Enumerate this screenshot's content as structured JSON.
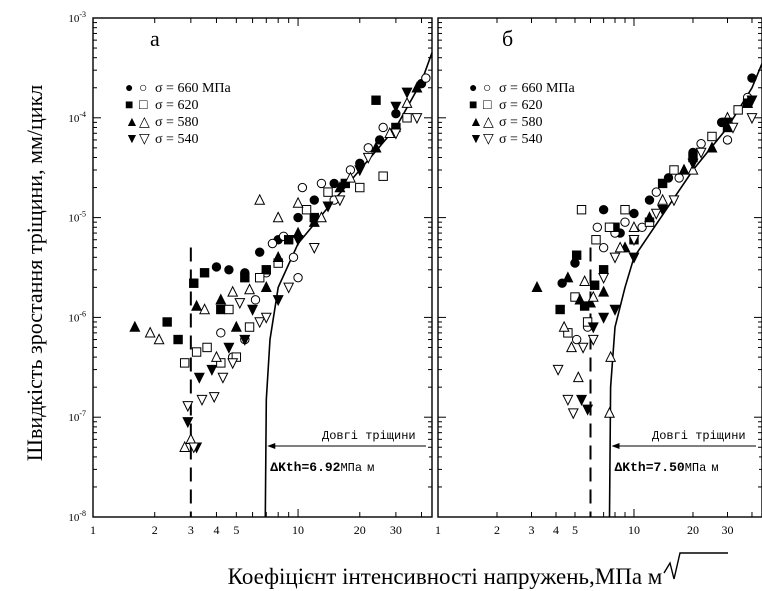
{
  "figure": {
    "ylabel": "Швидкість зростання тріщини, мм/цикл",
    "xlabel_prefix": "Коефіцієнт інтенсивності напружень,МПа",
    "xlabel_unit": "м",
    "y_ticks": [
      {
        "exp": -3,
        "base": "10",
        "sup": "-3"
      },
      {
        "exp": -4,
        "base": "10",
        "sup": "-4"
      },
      {
        "exp": -5,
        "base": "10",
        "sup": "-5"
      },
      {
        "exp": -6,
        "base": "10",
        "sup": "-6"
      },
      {
        "exp": -7,
        "base": "10",
        "sup": "-7"
      },
      {
        "exp": -8,
        "base": "10",
        "sup": "-8"
      }
    ],
    "x_tick_values": [
      1,
      2,
      3,
      4,
      5,
      10,
      20,
      30
    ]
  },
  "chart_data": [
    {
      "type": "scatter",
      "panel_label": "а",
      "x_scale": "log",
      "y_scale": "log",
      "xlim": [
        1,
        45
      ],
      "ylim": [
        1e-08,
        0.001
      ],
      "x_tick_labels": [
        "1",
        "2",
        "3",
        "4",
        "5",
        "10",
        "20",
        "30"
      ],
      "legend": [
        {
          "symbol_filled": "●",
          "symbol_open": "○",
          "label": "σ = 660 МПа"
        },
        {
          "symbol_filled": "■",
          "symbol_open": "□",
          "label": "σ = 620"
        },
        {
          "symbol_filled": "▲",
          "symbol_open": "△",
          "label": "σ = 580"
        },
        {
          "symbol_filled": "▼",
          "symbol_open": "▽",
          "label": "σ = 540"
        }
      ],
      "threshold_label": "ΔKth=6.92",
      "threshold_unit": "МПа",
      "threshold_unit_root": "м",
      "annotation": "Довгі тріщини",
      "threshold_value": 6.92,
      "dashed_line_x": 3,
      "long_crack_curve": [
        [
          6.92,
          1e-08
        ],
        [
          7.0,
          1.5e-07
        ],
        [
          7.3,
          6e-07
        ],
        [
          8,
          2e-06
        ],
        [
          10,
          5.5e-06
        ],
        [
          15,
          1.5e-05
        ],
        [
          20,
          3e-05
        ],
        [
          30,
          8e-05
        ],
        [
          40,
          0.00023
        ],
        [
          45,
          0.00045
        ]
      ],
      "series": [
        {
          "sigma": 660,
          "marker": "circle",
          "filled": true,
          "points": [
            [
              4.0,
              3.2e-06
            ],
            [
              4.6,
              3e-06
            ],
            [
              5.5,
              2.8e-06
            ],
            [
              6.5,
              4.5e-06
            ],
            [
              8,
              6e-06
            ],
            [
              10,
              1e-05
            ],
            [
              12,
              1.5e-05
            ],
            [
              15,
              2.2e-05
            ],
            [
              20,
              3.5e-05
            ],
            [
              25,
              6e-05
            ],
            [
              30,
              0.00011
            ],
            [
              40,
              0.00022
            ]
          ]
        },
        {
          "sigma": 660,
          "marker": "circle",
          "filled": false,
          "points": [
            [
              4.2,
              7e-07
            ],
            [
              4.8,
              4e-07
            ],
            [
              5.5,
              6e-07
            ],
            [
              6.2,
              1.5e-06
            ],
            [
              7,
              2.8e-06
            ],
            [
              7.5,
              5.5e-06
            ],
            [
              8.5,
              6.5e-06
            ],
            [
              9.5,
              4e-06
            ],
            [
              10,
              2.5e-06
            ],
            [
              10.5,
              2e-05
            ],
            [
              13,
              2.2e-05
            ],
            [
              15,
              1.5e-05
            ],
            [
              18,
              3e-05
            ],
            [
              22,
              5e-05
            ],
            [
              26,
              8e-05
            ],
            [
              42,
              0.00025
            ]
          ]
        },
        {
          "sigma": 620,
          "marker": "square",
          "filled": true,
          "points": [
            [
              2.3,
              9e-07
            ],
            [
              2.6,
              6e-07
            ],
            [
              3.1,
              2.2e-06
            ],
            [
              3.5,
              2.8e-06
            ],
            [
              4.2,
              1.2e-06
            ],
            [
              5.5,
              2.5e-06
            ],
            [
              7,
              3e-06
            ],
            [
              9,
              6e-06
            ],
            [
              12,
              1e-05
            ],
            [
              17,
              2.2e-05
            ],
            [
              24,
              0.00015
            ],
            [
              30,
              8e-05
            ]
          ]
        },
        {
          "sigma": 620,
          "marker": "square",
          "filled": false,
          "points": [
            [
              2.8,
              3.5e-07
            ],
            [
              3.2,
              4.5e-07
            ],
            [
              3.6,
              5e-07
            ],
            [
              4.2,
              3.5e-07
            ],
            [
              4.6,
              1.2e-06
            ],
            [
              5.0,
              4e-07
            ],
            [
              5.8,
              8e-07
            ],
            [
              6.5,
              2.5e-06
            ],
            [
              8,
              3.5e-06
            ],
            [
              11,
              1.2e-05
            ],
            [
              14,
              1.8e-05
            ],
            [
              20,
              2e-05
            ],
            [
              26,
              2.6e-05
            ],
            [
              34,
              0.0001
            ]
          ]
        },
        {
          "sigma": 580,
          "marker": "triangle-up",
          "filled": true,
          "points": [
            [
              1.6,
              8e-07
            ],
            [
              3.2,
              1.3e-06
            ],
            [
              4.2,
              1.5e-06
            ],
            [
              5.0,
              8e-07
            ],
            [
              7,
              2e-06
            ],
            [
              8,
              4e-06
            ],
            [
              10,
              7e-06
            ],
            [
              12,
              9e-06
            ],
            [
              16,
              2e-05
            ],
            [
              24,
              5e-05
            ],
            [
              38,
              0.0002
            ]
          ]
        },
        {
          "sigma": 580,
          "marker": "triangle-up",
          "filled": false,
          "points": [
            [
              1.9,
              7e-07
            ],
            [
              2.1,
              6e-07
            ],
            [
              2.8,
              5e-08
            ],
            [
              3.0,
              6e-08
            ],
            [
              3.5,
              1.2e-06
            ],
            [
              4,
              4e-07
            ],
            [
              4.8,
              1.8e-06
            ],
            [
              5.8,
              1.9e-06
            ],
            [
              6.5,
              1.5e-05
            ],
            [
              8,
              1e-05
            ],
            [
              10,
              1.4e-05
            ],
            [
              13,
              1e-05
            ],
            [
              18,
              2.5e-05
            ],
            [
              28,
              7e-05
            ],
            [
              34,
              0.00014
            ]
          ]
        },
        {
          "sigma": 540,
          "marker": "triangle-down",
          "filled": true,
          "points": [
            [
              2.9,
              9e-08
            ],
            [
              3.2,
              5e-08
            ],
            [
              3.3,
              2.5e-07
            ],
            [
              3.8,
              3e-07
            ],
            [
              4.6,
              5e-07
            ],
            [
              5.5,
              6e-07
            ],
            [
              6,
              1.2e-06
            ],
            [
              8,
              1.5e-06
            ],
            [
              10,
              6e-06
            ],
            [
              14,
              1.3e-05
            ],
            [
              20,
              3e-05
            ],
            [
              30,
              0.00013
            ],
            [
              34,
              0.00018
            ]
          ]
        },
        {
          "sigma": 540,
          "marker": "triangle-down",
          "filled": false,
          "points": [
            [
              2.9,
              1.3e-07
            ],
            [
              3.1,
              5e-08
            ],
            [
              3.4,
              1.5e-07
            ],
            [
              3.9,
              1.6e-07
            ],
            [
              4.3,
              2.5e-07
            ],
            [
              4.8,
              3.5e-07
            ],
            [
              5.2,
              1.4e-06
            ],
            [
              6.5,
              9e-07
            ],
            [
              7,
              1e-06
            ],
            [
              9,
              2e-06
            ],
            [
              12,
              5e-06
            ],
            [
              16,
              1.5e-05
            ],
            [
              22,
              4e-05
            ],
            [
              30,
              7e-05
            ],
            [
              38,
              0.0001
            ]
          ]
        }
      ]
    },
    {
      "type": "scatter",
      "panel_label": "б",
      "x_scale": "log",
      "y_scale": "log",
      "xlim": [
        1,
        45
      ],
      "ylim": [
        1e-08,
        0.001
      ],
      "x_tick_labels": [
        "1",
        "2",
        "3",
        "4",
        "5",
        "10",
        "20",
        "30"
      ],
      "legend": [
        {
          "symbol_filled": "●",
          "symbol_open": "○",
          "label": "σ = 660 МПа"
        },
        {
          "symbol_filled": "■",
          "symbol_open": "□",
          "label": "σ = 620"
        },
        {
          "symbol_filled": "▲",
          "symbol_open": "△",
          "label": "σ = 580"
        },
        {
          "symbol_filled": "▼",
          "symbol_open": "▽",
          "label": "σ = 540"
        }
      ],
      "threshold_label": "ΔKth=7.50",
      "threshold_unit": "МПа",
      "threshold_unit_root": "м",
      "annotation": "Довгі тріщини",
      "threshold_value": 7.5,
      "dashed_line_x": 6,
      "long_crack_curve": [
        [
          7.5,
          1e-08
        ],
        [
          7.6,
          2e-07
        ],
        [
          8,
          8e-07
        ],
        [
          9,
          2e-06
        ],
        [
          10,
          4e-06
        ],
        [
          15,
          1.3e-05
        ],
        [
          20,
          3e-05
        ],
        [
          30,
          8e-05
        ],
        [
          40,
          0.0002
        ],
        [
          45,
          0.00035
        ]
      ],
      "series": [
        {
          "sigma": 660,
          "marker": "circle",
          "filled": true,
          "points": [
            [
              4.3,
              2.2e-06
            ],
            [
              5,
              3.5e-06
            ],
            [
              7,
              1.2e-05
            ],
            [
              8.5,
              7e-06
            ],
            [
              10,
              1.1e-05
            ],
            [
              12,
              1.5e-05
            ],
            [
              15,
              2.5e-05
            ],
            [
              20,
              4.5e-05
            ],
            [
              28,
              9e-05
            ],
            [
              40,
              0.00025
            ]
          ]
        },
        {
          "sigma": 660,
          "marker": "circle",
          "filled": false,
          "points": [
            [
              5.1,
              6e-07
            ],
            [
              5.8,
              8e-07
            ],
            [
              6.5,
              8e-06
            ],
            [
              7,
              5e-06
            ],
            [
              8,
              7e-06
            ],
            [
              9,
              9e-06
            ],
            [
              11,
              8e-06
            ],
            [
              13,
              1.8e-05
            ],
            [
              17,
              2.5e-05
            ],
            [
              22,
              5.5e-05
            ],
            [
              30,
              6e-05
            ],
            [
              38,
              0.00016
            ]
          ]
        },
        {
          "sigma": 620,
          "marker": "square",
          "filled": true,
          "points": [
            [
              4.2,
              1.2e-06
            ],
            [
              5.1,
              4.2e-06
            ],
            [
              5.6,
              1.3e-06
            ],
            [
              6.3,
              2.1e-06
            ],
            [
              7,
              3e-06
            ],
            [
              8,
              8e-06
            ],
            [
              10,
              6e-06
            ],
            [
              14,
              2.2e-05
            ],
            [
              20,
              4e-05
            ],
            [
              30,
              8e-05
            ],
            [
              38,
              0.00014
            ]
          ]
        },
        {
          "sigma": 620,
          "marker": "square",
          "filled": false,
          "points": [
            [
              4.6,
              7e-07
            ],
            [
              5,
              1.6e-06
            ],
            [
              5.4,
              1.2e-05
            ],
            [
              5.8,
              9e-07
            ],
            [
              6.4,
              6e-06
            ],
            [
              7.5,
              8e-06
            ],
            [
              9,
              1.2e-05
            ],
            [
              12,
              9e-06
            ],
            [
              16,
              3e-05
            ],
            [
              25,
              6.5e-05
            ],
            [
              34,
              0.00012
            ]
          ]
        },
        {
          "sigma": 580,
          "marker": "triangle-up",
          "filled": true,
          "points": [
            [
              3.2,
              2e-06
            ],
            [
              4.6,
              2.5e-06
            ],
            [
              5.3,
              1.5e-06
            ],
            [
              6,
              1.4e-06
            ],
            [
              7,
              1.8e-06
            ],
            [
              9,
              5e-06
            ],
            [
              12,
              1e-05
            ],
            [
              18,
              3e-05
            ],
            [
              25,
              5e-05
            ],
            [
              38,
              0.00014
            ]
          ]
        },
        {
          "sigma": 580,
          "marker": "triangle-up",
          "filled": false,
          "points": [
            [
              4.4,
              8e-07
            ],
            [
              4.8,
              5e-07
            ],
            [
              5.2,
              2.5e-07
            ],
            [
              5.6,
              2.3e-06
            ],
            [
              6.2,
              1.6e-06
            ],
            [
              7.5,
              1.1e-07
            ],
            [
              7.6,
              4e-07
            ],
            [
              8.5,
              5e-06
            ],
            [
              10,
              8e-06
            ],
            [
              14,
              1.5e-05
            ],
            [
              20,
              3e-05
            ],
            [
              30,
              0.0001
            ]
          ]
        },
        {
          "sigma": 540,
          "marker": "triangle-down",
          "filled": true,
          "points": [
            [
              5.4,
              1.5e-07
            ],
            [
              5.8,
              1.2e-07
            ],
            [
              6.2,
              8e-07
            ],
            [
              7,
              1e-06
            ],
            [
              8,
              1.2e-06
            ],
            [
              10,
              4e-06
            ],
            [
              14,
              1.2e-05
            ],
            [
              20,
              3.5e-05
            ],
            [
              30,
              9e-05
            ],
            [
              40,
              0.00015
            ]
          ]
        },
        {
          "sigma": 540,
          "marker": "triangle-down",
          "filled": false,
          "points": [
            [
              4.1,
              3e-07
            ],
            [
              4.6,
              1.5e-07
            ],
            [
              4.9,
              1.1e-07
            ],
            [
              5.5,
              5e-07
            ],
            [
              6.2,
              6e-07
            ],
            [
              7,
              2.5e-06
            ],
            [
              8,
              4e-06
            ],
            [
              10,
              6e-06
            ],
            [
              13,
              1.1e-05
            ],
            [
              16,
              1.5e-05
            ],
            [
              22,
              4.5e-05
            ],
            [
              32,
              8e-05
            ],
            [
              40,
              0.0001
            ]
          ]
        }
      ]
    }
  ]
}
